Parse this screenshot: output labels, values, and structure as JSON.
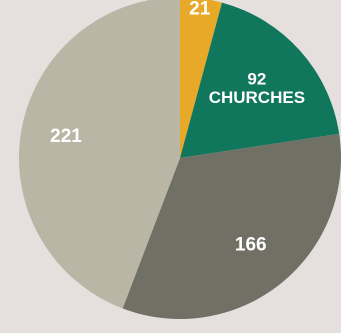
{
  "chart_data": {
    "type": "pie",
    "start_angle_deg": 0,
    "direction": "clockwise",
    "slices": [
      {
        "value": 21,
        "label_lines": [
          "21"
        ],
        "color": "#e8a928"
      },
      {
        "value": 92,
        "label_lines": [
          "92",
          "CHURCHES"
        ],
        "color": "#10765c"
      },
      {
        "value": 166,
        "label_lines": [
          "166"
        ],
        "color": "#717065"
      },
      {
        "value": 221,
        "label_lines": [
          "221"
        ],
        "color": "#b9b6a5"
      }
    ],
    "background": "#e5e0de"
  }
}
